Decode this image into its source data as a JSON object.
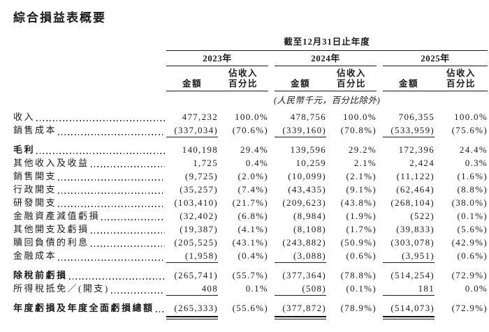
{
  "page": {
    "title": "綜合損益表概要"
  },
  "table": {
    "period_header": "截至12月31日止年度",
    "years": [
      "2023年",
      "2024年",
      "2025年"
    ],
    "amount_header": "金額",
    "pct_header_line1": "佔收入",
    "pct_header_line2": "百分比",
    "unit_note": "(人民幣千元，百分比除外)",
    "rows": [
      {
        "label": "收入",
        "values": [
          "477,232",
          "100.0%",
          "478,756",
          "100.0%",
          "706,355",
          "100.0%"
        ]
      },
      {
        "label": "銷售成本",
        "rule_after": true,
        "values": [
          "(337,034)",
          "(70.6%)",
          "(339,160)",
          "(70.8%)",
          "(533,959)",
          "(75.6%)"
        ]
      },
      {
        "label": "毛利",
        "bold": true,
        "space_before": true,
        "values": [
          "140,198",
          "29.4%",
          "139,596",
          "29.2%",
          "172,396",
          "24.4%"
        ]
      },
      {
        "label": "其他收入及收益",
        "values": [
          "1,725",
          "0.4%",
          "10,259",
          "2.1%",
          "2,424",
          "0.3%"
        ]
      },
      {
        "label": "銷售開支",
        "values": [
          "(9,725)",
          "(2.0%)",
          "(10,099)",
          "(2.1%)",
          "(11,122)",
          "(1.6%)"
        ]
      },
      {
        "label": "行政開支",
        "values": [
          "(35,257)",
          "(7.4%)",
          "(43,435)",
          "(9.1%)",
          "(62,464)",
          "(8.8%)"
        ]
      },
      {
        "label": "研發開支",
        "values": [
          "(103,410)",
          "(21.7%)",
          "(209,623)",
          "(43.8%)",
          "(268,104)",
          "(38.0%)"
        ]
      },
      {
        "label": "金融資產減值虧損",
        "values": [
          "(32,402)",
          "(6.8%)",
          "(8,984)",
          "(1.9%)",
          "(522)",
          "(0.1%)"
        ]
      },
      {
        "label": "其他開支及虧損",
        "values": [
          "(19,387)",
          "(4.1%)",
          "(8,108)",
          "(1.7%)",
          "(39,833)",
          "(5.6%)"
        ]
      },
      {
        "label": "贖回負債的利息",
        "values": [
          "(205,525)",
          "(43.1%)",
          "(243,882)",
          "(50.9%)",
          "(303,078)",
          "(42.9%)"
        ]
      },
      {
        "label": "金融成本",
        "rule_after": true,
        "values": [
          "(1,958)",
          "(0.4%)",
          "(3,088)",
          "(0.6%)",
          "(3,951)",
          "(0.6%)"
        ]
      },
      {
        "label": "除稅前虧損",
        "bold": true,
        "space_before": true,
        "values": [
          "(265,741)",
          "(55.7%)",
          "(377,364)",
          "(78.8%)",
          "(514,254)",
          "(72.9%)"
        ]
      },
      {
        "label": "所得稅抵免／(開支)",
        "rule_after": true,
        "values": [
          "408",
          "0.1%",
          "(508)",
          "(0.1%)",
          "181",
          "0.0%"
        ]
      },
      {
        "label": "年度虧損及年度全面虧損總額",
        "bold": true,
        "space_before": true,
        "double_rule_after": true,
        "values": [
          "(265,333)",
          "(55.6%)",
          "(377,872)",
          "(78.9%)",
          "(514,073)",
          "(72.9%)"
        ]
      }
    ]
  }
}
